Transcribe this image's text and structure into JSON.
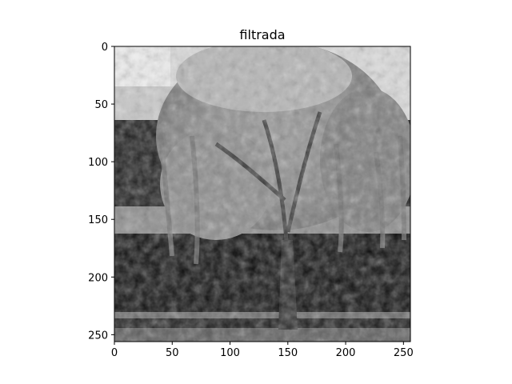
{
  "chart_data": {
    "type": "heatmap",
    "title": "filtrada",
    "colormap": "gray",
    "image_size": [
      256,
      256
    ],
    "xlim": [
      0,
      256
    ],
    "ylim": [
      256,
      0
    ],
    "x_ticks": [
      0,
      50,
      100,
      150,
      200,
      250
    ],
    "y_ticks": [
      0,
      50,
      100,
      150,
      200,
      250
    ],
    "x_tick_labels": [
      "0",
      "50",
      "100",
      "150",
      "200",
      "250"
    ],
    "y_tick_labels": [
      "0",
      "50",
      "100",
      "150",
      "200",
      "250"
    ],
    "xlabel": "",
    "ylabel": "",
    "grid": false,
    "scene": "grayscale photograph of a weeping tree in front of a building"
  }
}
